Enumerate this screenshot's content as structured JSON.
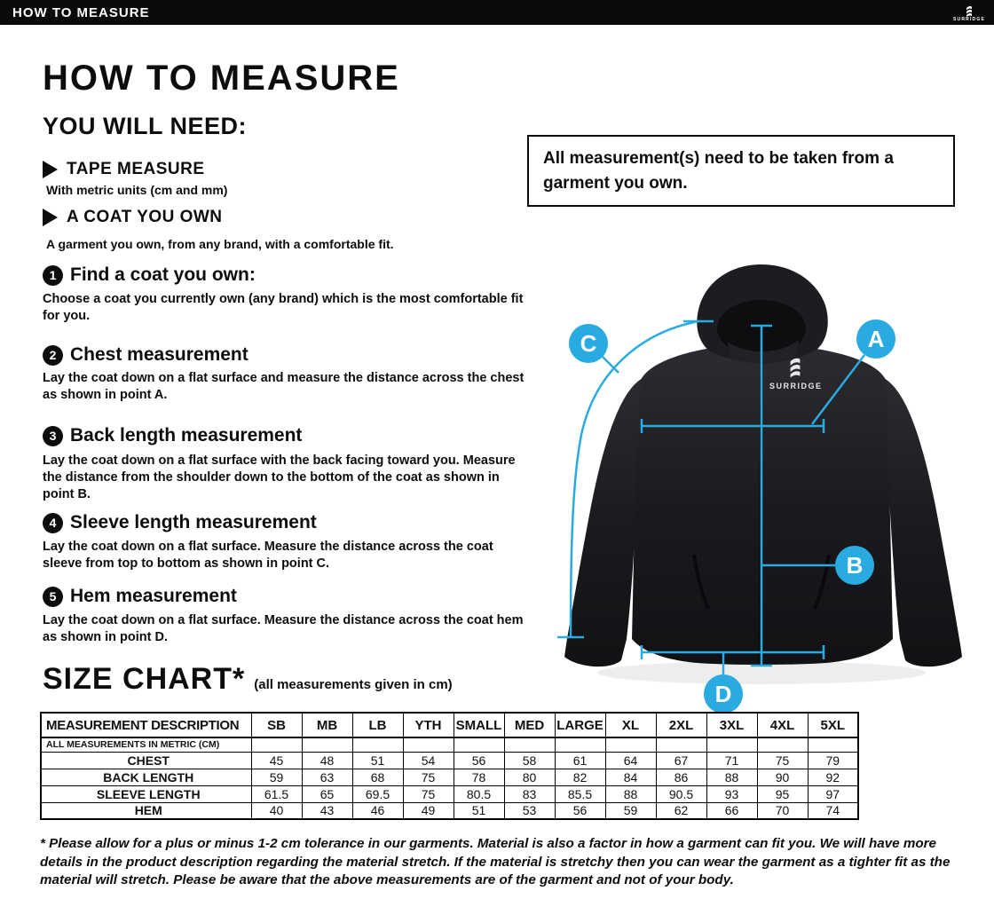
{
  "topbar": {
    "title": "HOW TO MEASURE",
    "brand": "SURRIDGE"
  },
  "intro": {
    "title": "HOW TO MEASURE",
    "subtitle": "YOU WILL NEED:",
    "requirements": [
      {
        "label": "TAPE MEASURE",
        "desc": "With metric units (cm and mm)"
      },
      {
        "label": "A COAT YOU OWN",
        "desc": "A garment you own, from any brand, with a comfortable fit."
      }
    ]
  },
  "steps": [
    {
      "num": "1",
      "title": "Find a coat you own:",
      "desc": "Choose a coat you currently own (any brand) which is the most comfortable fit for you."
    },
    {
      "num": "2",
      "title": "Chest measurement",
      "desc": "Lay the coat down on a flat surface and measure the distance across the chest as shown in point A."
    },
    {
      "num": "3",
      "title": "Back length measurement",
      "desc": "Lay the coat down on a flat surface with the back facing toward you. Measure the distance from the shoulder down to the bottom of the coat as shown in point B."
    },
    {
      "num": "4",
      "title": "Sleeve length measurement",
      "desc": "Lay the coat down on a flat surface. Measure the distance across the coat sleeve from top to bottom as shown in point C."
    },
    {
      "num": "5",
      "title": "Hem measurement",
      "desc": "Lay the coat down on a flat surface. Measure the distance across the coat hem as shown in point D."
    }
  ],
  "note": {
    "text": "All measurement(s) need to be taken from a garment you own."
  },
  "diagram": {
    "accent": "#29abe2",
    "garment_logo": "SURRIDGE",
    "points": {
      "a": "A",
      "b": "B",
      "c": "C",
      "d": "D"
    }
  },
  "size_chart": {
    "title": "SIZE CHART*",
    "subtitle": "(all measurements given in cm)"
  },
  "chart_data": {
    "type": "table",
    "columns": [
      "MEASUREMENT DESCRIPTION",
      "SB",
      "MB",
      "LB",
      "YTH",
      "SMALL",
      "MED",
      "LARGE",
      "XL",
      "2XL",
      "3XL",
      "4XL",
      "5XL"
    ],
    "unit_row": "ALL MEASUREMENTS IN METRIC (CM)",
    "rows": [
      {
        "label": "CHEST",
        "values": [
          45,
          48,
          51,
          54,
          56,
          58,
          61,
          64,
          67,
          71,
          75,
          79
        ]
      },
      {
        "label": "BACK LENGTH",
        "values": [
          59,
          63,
          68,
          75,
          78,
          80,
          82,
          84,
          86,
          88,
          90,
          92
        ]
      },
      {
        "label": "SLEEVE LENGTH",
        "values": [
          61.5,
          65,
          69.5,
          75,
          80.5,
          83,
          85.5,
          88,
          90.5,
          93,
          95,
          97
        ]
      },
      {
        "label": "HEM",
        "values": [
          40,
          43,
          46,
          49,
          51,
          53,
          56,
          59,
          62,
          66,
          70,
          74
        ]
      }
    ]
  },
  "footnote": "* Please allow for a plus or minus 1-2 cm tolerance in our garments. Material is also a factor in how a garment can fit you. We will have more details in the product description regarding the material stretch.  If the material is stretchy then you can wear the garment as a tighter fit as the material will stretch.  Please be aware that the above measurements are of the garment and not of your body."
}
